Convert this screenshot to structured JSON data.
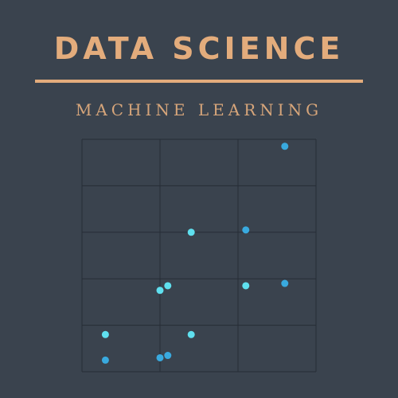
{
  "header": {
    "title": "DATA SCIENCE",
    "subtitle": "MACHINE LEARNING"
  },
  "colors": {
    "background": "#3a434e",
    "accent": "#e3ac7c",
    "grid": "#262d36",
    "point_dark": "#39aadf",
    "point_light": "#5fe0ef"
  },
  "chart_data": {
    "type": "scatter",
    "title": "",
    "xlabel": "",
    "ylabel": "",
    "xlim": [
      0,
      3
    ],
    "ylim": [
      0,
      5
    ],
    "grid": true,
    "legend": "none",
    "series": [
      {
        "color": "#39aadf",
        "x": [
          0.3,
          1.0,
          1.1,
          2.1,
          2.6,
          2.6
        ],
        "y": [
          0.25,
          0.3,
          0.35,
          3.05,
          1.9,
          4.85
        ]
      },
      {
        "color": "#5fe0ef",
        "x": [
          0.3,
          1.0,
          1.1,
          1.4,
          1.4,
          2.1
        ],
        "y": [
          0.8,
          1.75,
          1.85,
          0.8,
          3.0,
          1.85
        ]
      }
    ]
  }
}
